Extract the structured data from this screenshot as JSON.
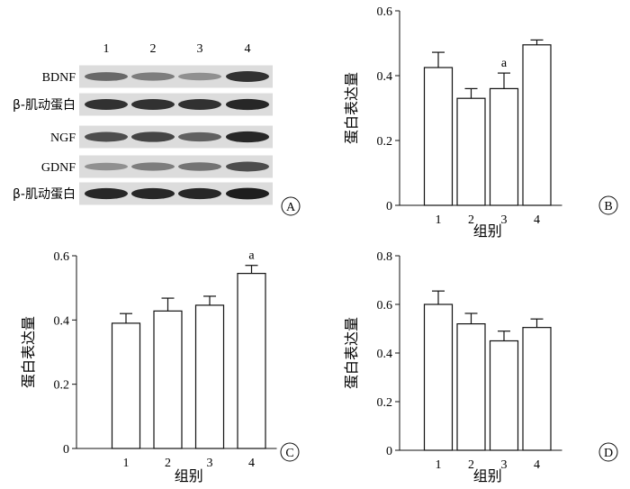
{
  "blot": {
    "lanes": [
      "1",
      "2",
      "3",
      "4"
    ],
    "rows": [
      {
        "label": "BDNF",
        "intensity": [
          0.55,
          0.45,
          0.35,
          0.85
        ]
      },
      {
        "label": "β-肌动蛋白",
        "intensity": [
          0.85,
          0.85,
          0.85,
          0.9
        ]
      },
      {
        "label": "NGF",
        "intensity": [
          0.7,
          0.75,
          0.6,
          0.9
        ]
      },
      {
        "label": "GDNF",
        "intensity": [
          0.35,
          0.45,
          0.5,
          0.7
        ]
      },
      {
        "label": "β-肌动蛋白",
        "intensity": [
          0.9,
          0.9,
          0.9,
          0.95
        ]
      }
    ],
    "panel_letter": "A"
  },
  "chart_data": [
    {
      "type": "bar",
      "panel_letter": "B",
      "categories": [
        "1",
        "2",
        "3",
        "4"
      ],
      "values": [
        0.425,
        0.33,
        0.36,
        0.495
      ],
      "errors": [
        0.047,
        0.03,
        0.048,
        0.015
      ],
      "annotations": [
        {
          "category": "3",
          "text": "a"
        }
      ],
      "ylabel": "蛋白表达量",
      "xlabel": "组别",
      "ylim": [
        0,
        0.6
      ],
      "yticks": [
        "0",
        "0.2",
        "0.4",
        "0.6"
      ],
      "ytick_values": [
        0,
        0.2,
        0.4,
        0.6
      ]
    },
    {
      "type": "bar",
      "panel_letter": "C",
      "categories": [
        "1",
        "2",
        "3",
        "4"
      ],
      "values": [
        0.39,
        0.428,
        0.446,
        0.545
      ],
      "errors": [
        0.03,
        0.04,
        0.028,
        0.025
      ],
      "annotations": [
        {
          "category": "4",
          "text": "a"
        }
      ],
      "ylabel": "蛋白表达量",
      "xlabel": "组别",
      "ylim": [
        0,
        0.6
      ],
      "yticks": [
        "0",
        "0.2",
        "0.4",
        "0.6"
      ],
      "ytick_values": [
        0,
        0.2,
        0.4,
        0.6
      ]
    },
    {
      "type": "bar",
      "panel_letter": "D",
      "categories": [
        "1",
        "2",
        "3",
        "4"
      ],
      "values": [
        0.6,
        0.52,
        0.45,
        0.505
      ],
      "errors": [
        0.055,
        0.043,
        0.04,
        0.035
      ],
      "annotations": [],
      "ylabel": "蛋白表达量",
      "xlabel": "组别",
      "ylim": [
        0,
        0.8
      ],
      "yticks": [
        "0",
        "0.2",
        "0.4",
        "0.6",
        "0.8"
      ],
      "ytick_values": [
        0,
        0.2,
        0.4,
        0.6,
        0.8
      ]
    }
  ]
}
